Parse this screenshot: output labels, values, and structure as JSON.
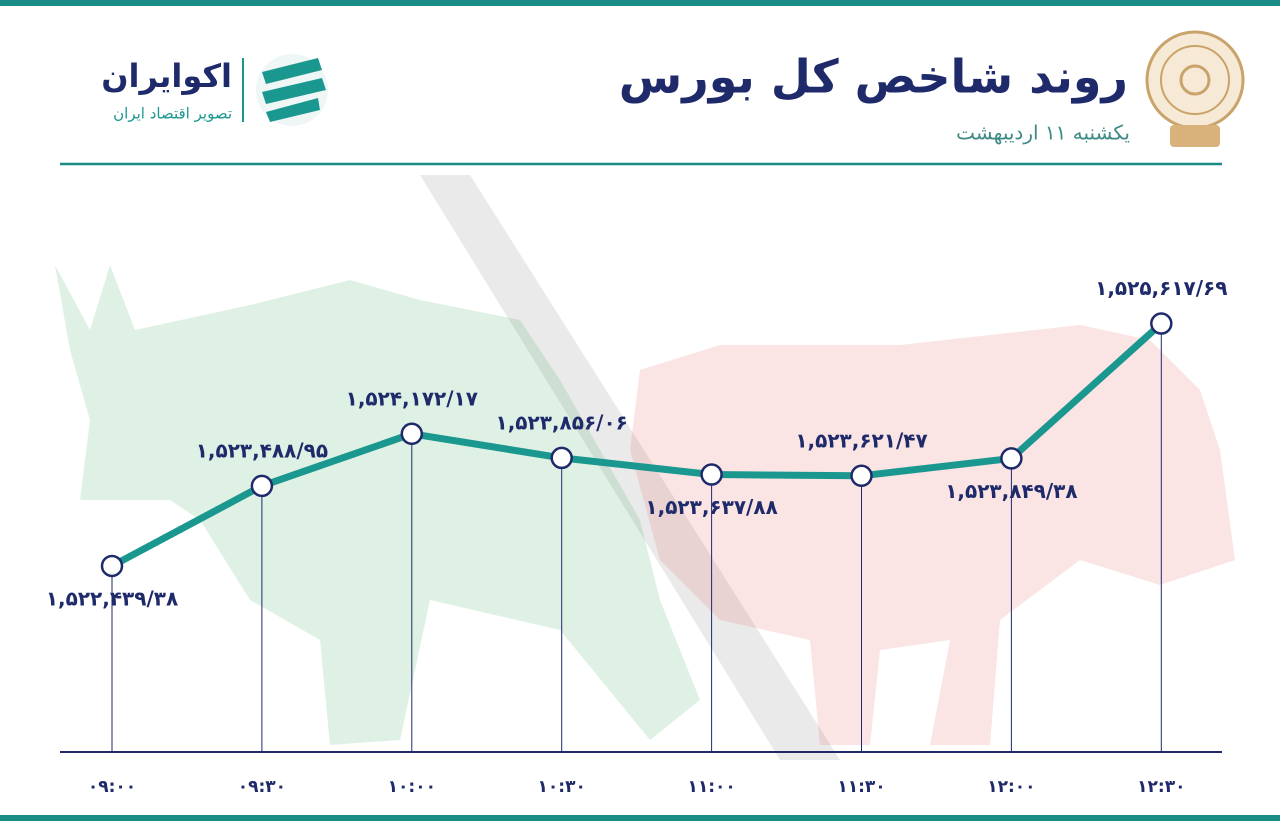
{
  "brand": {
    "name": "اکوایران",
    "tagline": "تصویر اقتصاد ایران"
  },
  "chart_data": {
    "type": "line",
    "title": "روند شاخص کل بورس",
    "subtitle": "یکشنبه ۱۱ اردیبهشت",
    "categories": [
      "۰۹:۰۰",
      "۰۹:۳۰",
      "۱۰:۰۰",
      "۱۰:۳۰",
      "۱۱:۰۰",
      "۱۱:۳۰",
      "۱۲:۰۰",
      "۱۲:۳۰"
    ],
    "series": [
      {
        "color": "#1a9890",
        "values": [
          1522439.38,
          1523488.95,
          1524172.17,
          1523856.06,
          1523637.88,
          1523621.47,
          1523849.38,
          1525617.69
        ],
        "value_labels": [
          "۱,۵۲۲,۴۳۹/۳۸",
          "۱,۵۲۳,۴۸۸/۹۵",
          "۱,۵۲۴,۱۷۲/۱۷",
          "۱,۵۲۳,۸۵۶/۰۶",
          "۱,۵۲۳,۶۳۷/۸۸",
          "۱,۵۲۳,۶۲۱/۴۷",
          "۱,۵۲۳,۸۴۹/۳۸",
          "۱,۵۲۵,۶۱۷/۶۹"
        ]
      }
    ],
    "ylim": [
      1520000,
      1527500
    ]
  }
}
